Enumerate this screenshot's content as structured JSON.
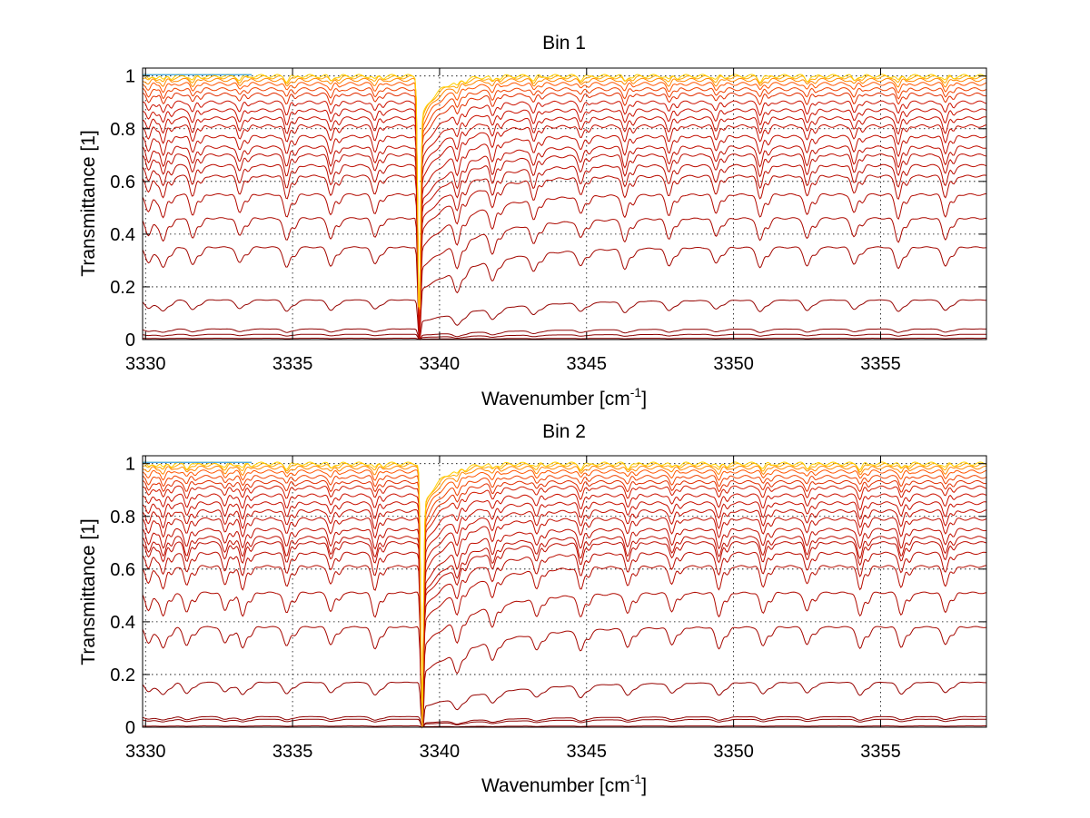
{
  "figure": {
    "background": "#ffffff",
    "colors": {
      "deep": "#8b0000",
      "mid": "#cc1100",
      "bright": "#ff5500",
      "light": "#ffaa00",
      "faint": "#ffd000",
      "accent_green": "#66cc33",
      "accent_blue": "#3399ff"
    }
  },
  "chart_data": [
    {
      "type": "line",
      "title": "Bin 1",
      "xlabel": "Wavenumber [cm",
      "xlabel_sup": "-1",
      "xlabel_end": "]",
      "ylabel": "Transmittance [1]",
      "xlim": [
        3329.9,
        3358.6
      ],
      "ylim": [
        0,
        1.03
      ],
      "xticks": [
        3330,
        3335,
        3340,
        3345,
        3350,
        3355
      ],
      "xtick_labels": [
        "3330",
        "3335",
        "3340",
        "3345",
        "3350",
        "3355"
      ],
      "yticks": [
        0,
        0.2,
        0.4,
        0.6,
        0.8,
        1
      ],
      "ytick_labels": [
        "0",
        "0.2",
        "0.4",
        "0.6",
        "0.8",
        "1"
      ],
      "grid": "dotted",
      "strong_line_center": 3339.3,
      "line_centers": [
        3330.1,
        3330.6,
        3331.6,
        3333.2,
        3334.8,
        3336.3,
        3337.8,
        3340.6,
        3341.8,
        3343.2,
        3344.8,
        3346.3,
        3347.8,
        3349.4,
        3350.9,
        3352.5,
        3354.1,
        3355.6,
        3357.2
      ],
      "series_baselines": [
        0.005,
        0.02,
        0.04,
        0.15,
        0.35,
        0.46,
        0.55,
        0.62,
        0.66,
        0.7,
        0.73,
        0.77,
        0.81,
        0.84,
        0.87,
        0.9,
        0.93,
        0.95,
        0.97,
        0.985,
        0.995,
        1.0
      ],
      "num_series": 22
    },
    {
      "type": "line",
      "title": "Bin 2",
      "xlabel": "Wavenumber [cm",
      "xlabel_sup": "-1",
      "xlabel_end": "]",
      "ylabel": "Transmittance [1]",
      "xlim": [
        3329.9,
        3358.6
      ],
      "ylim": [
        0,
        1.03
      ],
      "xticks": [
        3330,
        3335,
        3340,
        3345,
        3350,
        3355
      ],
      "xtick_labels": [
        "3330",
        "3335",
        "3340",
        "3345",
        "3350",
        "3355"
      ],
      "yticks": [
        0,
        0.2,
        0.4,
        0.6,
        0.8,
        1
      ],
      "ytick_labels": [
        "0",
        "0.2",
        "0.4",
        "0.6",
        "0.8",
        "1"
      ],
      "grid": "dotted",
      "strong_line_center": 3339.4,
      "line_centers": [
        3330.1,
        3330.6,
        3331.4,
        3332.7,
        3333.3,
        3334.8,
        3336.3,
        3337.8,
        3340.6,
        3341.8,
        3343.3,
        3344.8,
        3346.4,
        3347.9,
        3349.5,
        3351.0,
        3352.5,
        3354.3,
        3355.7,
        3357.2
      ],
      "series_baselines": [
        0.005,
        0.03,
        0.04,
        0.17,
        0.38,
        0.51,
        0.61,
        0.66,
        0.7,
        0.72,
        0.75,
        0.79,
        0.82,
        0.85,
        0.88,
        0.91,
        0.93,
        0.95,
        0.97,
        0.985,
        0.995,
        1.0
      ],
      "num_series": 22
    }
  ]
}
